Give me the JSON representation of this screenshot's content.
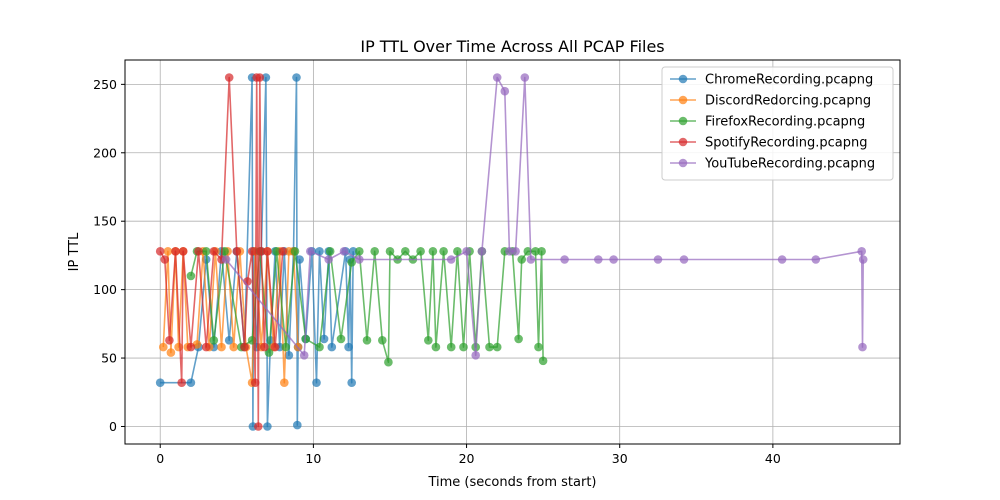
{
  "chart_data": {
    "type": "line",
    "title": "IP TTL Over Time Across All PCAP Files",
    "xlabel": "Time (seconds from start)",
    "ylabel": "IP TTL",
    "xlim": [
      -2.3,
      48.3
    ],
    "ylim": [
      -12.8,
      267.8
    ],
    "xticks": [
      0,
      10,
      20,
      30,
      40
    ],
    "yticks": [
      0,
      50,
      100,
      150,
      200,
      250
    ],
    "grid": true,
    "legend": "top-right",
    "series": [
      {
        "name": "ChromeRecording.pcapng",
        "color": "#1f77b4",
        "x": [
          0.0,
          2.0,
          2.5,
          3.0,
          3.5,
          4.0,
          4.5,
          5.0,
          5.5,
          6.0,
          6.05,
          6.1,
          6.3,
          6.6,
          6.9,
          7.0,
          7.2,
          7.5,
          7.8,
          8.1,
          8.4,
          8.7,
          8.9,
          8.95,
          9.0,
          9.1,
          9.5,
          9.9,
          10.2,
          10.4,
          10.7,
          11.0,
          11.2,
          12.1,
          12.3,
          12.4,
          12.5,
          12.6
        ],
        "y": [
          32,
          32,
          58,
          122,
          58,
          128,
          63,
          128,
          58,
          255,
          0,
          128,
          58,
          128,
          255,
          0,
          63,
          128,
          58,
          128,
          52,
          128,
          255,
          1,
          58,
          122,
          64,
          128,
          32,
          128,
          64,
          128,
          58,
          128,
          58,
          122,
          32,
          128
        ]
      },
      {
        "name": "DiscordRedorcing.pcapng",
        "color": "#ff7f0e",
        "x": [
          0.2,
          0.5,
          0.7,
          1.0,
          1.2,
          1.5,
          1.8,
          2.4,
          2.8,
          3.2,
          3.6,
          4.0,
          4.4,
          4.8,
          5.2,
          5.6,
          6.0,
          6.2,
          6.6,
          7.0,
          7.4,
          7.8,
          8.1,
          8.4,
          8.7,
          9.0
        ],
        "y": [
          58,
          128,
          54,
          128,
          58,
          128,
          58,
          60,
          128,
          58,
          128,
          58,
          128,
          58,
          128,
          58,
          32,
          128,
          58,
          128,
          58,
          128,
          32,
          128,
          128,
          58
        ]
      },
      {
        "name": "FirefoxRecording.pcapng",
        "color": "#2ca02c",
        "x": [
          2.0,
          2.4,
          3.0,
          3.5,
          4.2,
          5.3,
          6.0,
          6.5,
          7.1,
          7.6,
          8.2,
          8.8,
          9.5,
          10.4,
          11.1,
          11.8,
          12.5,
          13.0,
          13.5,
          14.0,
          14.5,
          14.9,
          15.0,
          15.5,
          16.0,
          16.5,
          17.0,
          17.5,
          17.8,
          18.0,
          18.5,
          19.0,
          19.4,
          19.8,
          20.2,
          20.6,
          21.0,
          21.5,
          22.0,
          22.5,
          23.0,
          23.4,
          23.6,
          24.0,
          24.5,
          24.7,
          24.9,
          25.0
        ],
        "y": [
          110,
          128,
          128,
          63,
          128,
          58,
          63,
          128,
          54,
          128,
          58,
          128,
          64,
          58,
          128,
          64,
          120,
          128,
          63,
          128,
          63,
          47,
          128,
          122,
          128,
          122,
          128,
          63,
          128,
          58,
          128,
          58,
          128,
          58,
          128,
          58,
          128,
          58,
          58,
          128,
          128,
          64,
          122,
          128,
          128,
          58,
          128,
          48
        ]
      },
      {
        "name": "SpotifyRecording.pcapng",
        "color": "#d62728",
        "x": [
          0.0,
          0.3,
          0.6,
          1.0,
          1.4,
          1.5,
          2.0,
          2.5,
          3.0,
          3.5,
          4.0,
          4.5,
          5.0,
          5.5,
          5.7,
          6.0,
          6.2,
          6.3,
          6.4,
          6.5,
          6.6,
          6.8,
          7.0,
          7.5,
          8.0
        ],
        "y": [
          128,
          122,
          63,
          128,
          32,
          128,
          58,
          128,
          58,
          128,
          122,
          255,
          128,
          58,
          106,
          128,
          32,
          255,
          0,
          255,
          128,
          58,
          128,
          58,
          128
        ]
      },
      {
        "name": "YouTubeRecording.pcapng",
        "color": "#9467bd",
        "x": [
          4.3,
          9.4,
          9.8,
          11.0,
          12.0,
          13.0,
          19.0,
          20.0,
          20.6,
          21.0,
          22.0,
          22.5,
          22.8,
          23.2,
          23.8,
          24.2,
          26.4,
          28.6,
          29.6,
          32.5,
          34.2,
          40.6,
          42.8,
          45.8,
          45.85,
          45.9
        ],
        "y": [
          122,
          52,
          128,
          122,
          128,
          122,
          122,
          128,
          52,
          128,
          255,
          245,
          128,
          128,
          255,
          122,
          122,
          122,
          122,
          122,
          122,
          122,
          122,
          128,
          58,
          122
        ]
      }
    ]
  }
}
